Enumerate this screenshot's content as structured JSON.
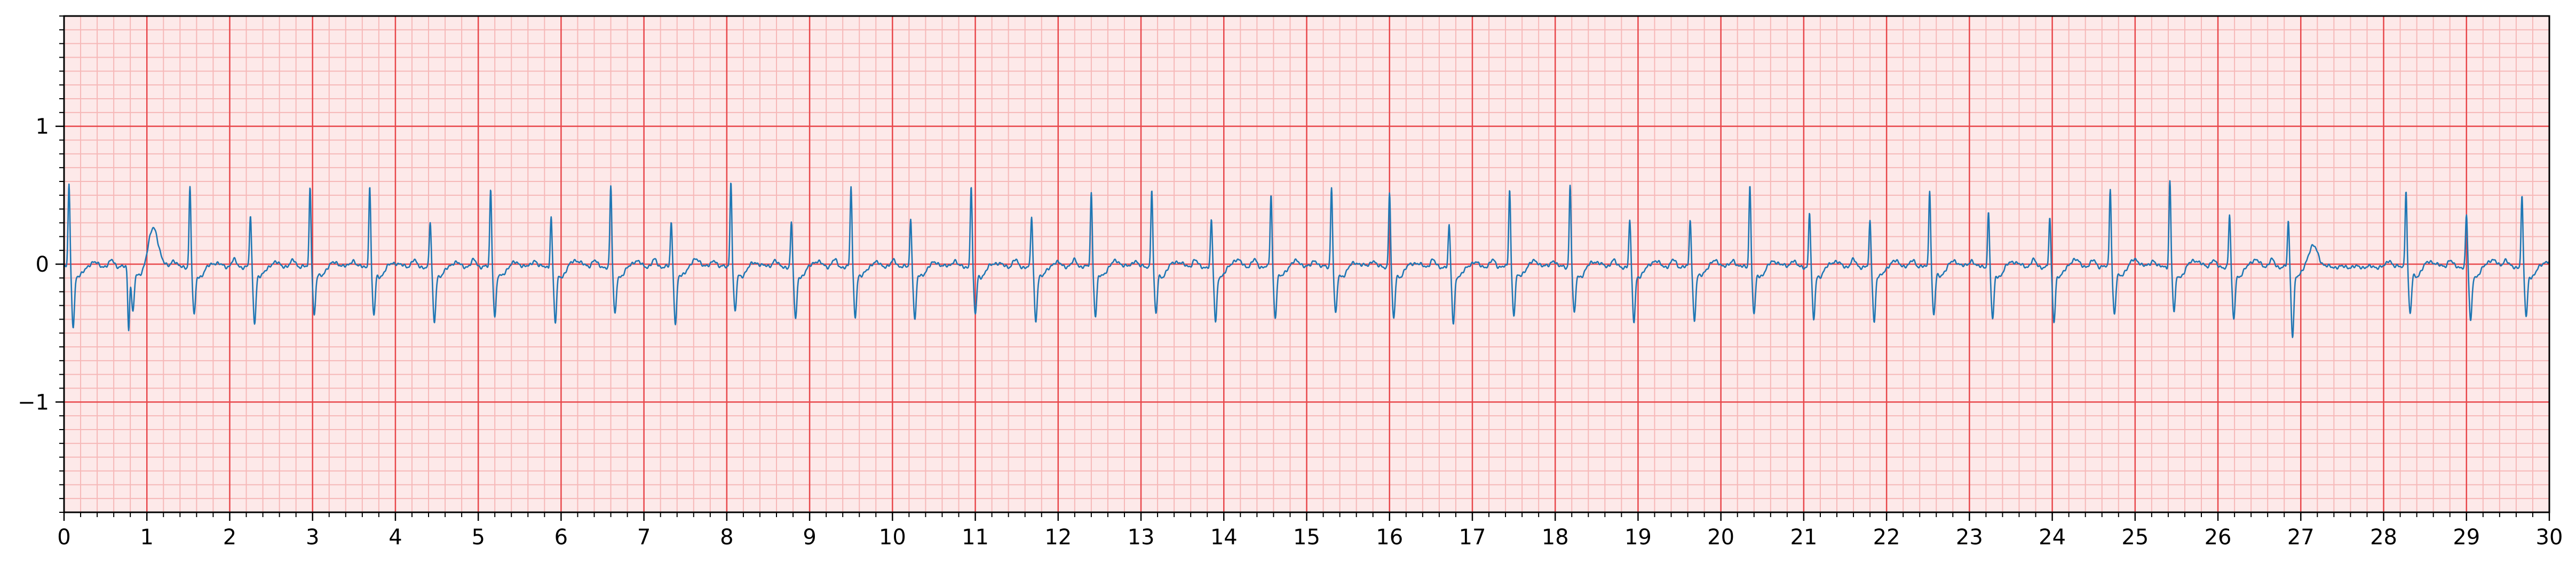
{
  "chart_data": {
    "type": "line",
    "title": "",
    "xlabel": "",
    "ylabel": "",
    "xlim": [
      0,
      30
    ],
    "ylim": [
      -1.8,
      1.8
    ],
    "x_ticks": [
      0,
      1,
      2,
      3,
      4,
      5,
      6,
      7,
      8,
      9,
      10,
      11,
      12,
      13,
      14,
      15,
      16,
      17,
      18,
      19,
      20,
      21,
      22,
      23,
      24,
      25,
      26,
      27,
      28,
      29,
      30
    ],
    "x_tick_labels": [
      "0",
      "1",
      "2",
      "3",
      "4",
      "5",
      "6",
      "7",
      "8",
      "9",
      "10",
      "11",
      "12",
      "13",
      "14",
      "15",
      "16",
      "17",
      "18",
      "19",
      "20",
      "21",
      "22",
      "23",
      "24",
      "25",
      "26",
      "27",
      "28",
      "29",
      "30"
    ],
    "y_ticks": [
      1,
      0,
      -1
    ],
    "y_tick_labels": [
      "1",
      "0",
      "−1"
    ],
    "grid": true,
    "grid_major": {
      "x_step": 1,
      "y_step": 1,
      "color": "#e8474b"
    },
    "grid_minor": {
      "x_step": 0.2,
      "y_step": 0.1,
      "color": "#f6b8b8"
    },
    "background_color": "#fde9e9",
    "line_color": "#1f77b4",
    "baseline": -0.02,
    "beats": [
      {
        "t": 0.06,
        "r": 0.6,
        "s": -0.4,
        "tw": 0.03
      },
      {
        "t": 0.78,
        "r": -0.45,
        "s": -0.3,
        "tw": 0.28
      },
      {
        "t": 1.52,
        "r": 0.58,
        "s": -0.33,
        "tw": 0.03
      },
      {
        "t": 2.25,
        "r": 0.37,
        "s": -0.38,
        "tw": 0.03
      },
      {
        "t": 2.97,
        "r": 0.59,
        "s": -0.32,
        "tw": 0.03
      },
      {
        "t": 3.69,
        "r": 0.59,
        "s": -0.33,
        "tw": 0.03
      },
      {
        "t": 4.42,
        "r": 0.33,
        "s": -0.38,
        "tw": 0.03
      },
      {
        "t": 5.15,
        "r": 0.57,
        "s": -0.33,
        "tw": 0.03
      },
      {
        "t": 5.88,
        "r": 0.37,
        "s": -0.38,
        "tw": 0.05
      },
      {
        "t": 6.6,
        "r": 0.59,
        "s": -0.32,
        "tw": 0.04
      },
      {
        "t": 7.33,
        "r": 0.33,
        "s": -0.38,
        "tw": 0.05
      },
      {
        "t": 8.05,
        "r": 0.63,
        "s": -0.3,
        "tw": 0.03
      },
      {
        "t": 8.78,
        "r": 0.32,
        "s": -0.36,
        "tw": 0.04
      },
      {
        "t": 9.5,
        "r": 0.59,
        "s": -0.33,
        "tw": 0.03
      },
      {
        "t": 10.22,
        "r": 0.35,
        "s": -0.36,
        "tw": 0.03
      },
      {
        "t": 10.95,
        "r": 0.59,
        "s": -0.32,
        "tw": 0.03
      },
      {
        "t": 11.68,
        "r": 0.37,
        "s": -0.37,
        "tw": 0.03
      },
      {
        "t": 12.4,
        "r": 0.54,
        "s": -0.33,
        "tw": 0.04
      },
      {
        "t": 13.13,
        "r": 0.57,
        "s": -0.32,
        "tw": 0.04
      },
      {
        "t": 13.85,
        "r": 0.34,
        "s": -0.37,
        "tw": 0.05
      },
      {
        "t": 14.57,
        "r": 0.53,
        "s": -0.34,
        "tw": 0.04
      },
      {
        "t": 15.3,
        "r": 0.59,
        "s": -0.32,
        "tw": 0.03
      },
      {
        "t": 16.0,
        "r": 0.55,
        "s": -0.36,
        "tw": 0.03
      },
      {
        "t": 16.72,
        "r": 0.3,
        "s": -0.38,
        "tw": 0.03
      },
      {
        "t": 17.45,
        "r": 0.57,
        "s": -0.32,
        "tw": 0.04
      },
      {
        "t": 18.18,
        "r": 0.6,
        "s": -0.32,
        "tw": 0.04
      },
      {
        "t": 18.9,
        "r": 0.34,
        "s": -0.37,
        "tw": 0.04
      },
      {
        "t": 19.63,
        "r": 0.35,
        "s": -0.36,
        "tw": 0.04
      },
      {
        "t": 20.35,
        "r": 0.6,
        "s": -0.32,
        "tw": 0.04
      },
      {
        "t": 21.07,
        "r": 0.4,
        "s": -0.36,
        "tw": 0.04
      },
      {
        "t": 21.8,
        "r": 0.33,
        "s": -0.37,
        "tw": 0.04
      },
      {
        "t": 22.52,
        "r": 0.57,
        "s": -0.32,
        "tw": 0.04
      },
      {
        "t": 23.23,
        "r": 0.4,
        "s": -0.36,
        "tw": 0.04
      },
      {
        "t": 23.97,
        "r": 0.35,
        "s": -0.37,
        "tw": 0.05
      },
      {
        "t": 24.7,
        "r": 0.58,
        "s": -0.32,
        "tw": 0.05
      },
      {
        "t": 25.42,
        "r": 0.63,
        "s": -0.3,
        "tw": 0.05
      },
      {
        "t": 26.14,
        "r": 0.38,
        "s": -0.36,
        "tw": 0.05
      },
      {
        "t": 26.85,
        "r": 0.33,
        "s": -0.47,
        "tw": 0.15
      },
      {
        "t": 28.27,
        "r": 0.57,
        "s": -0.32,
        "tw": 0.04
      },
      {
        "t": 29.0,
        "r": 0.38,
        "s": -0.37,
        "tw": 0.05
      },
      {
        "t": 29.67,
        "r": 0.51,
        "s": -0.34,
        "tw": 0.04
      }
    ]
  }
}
